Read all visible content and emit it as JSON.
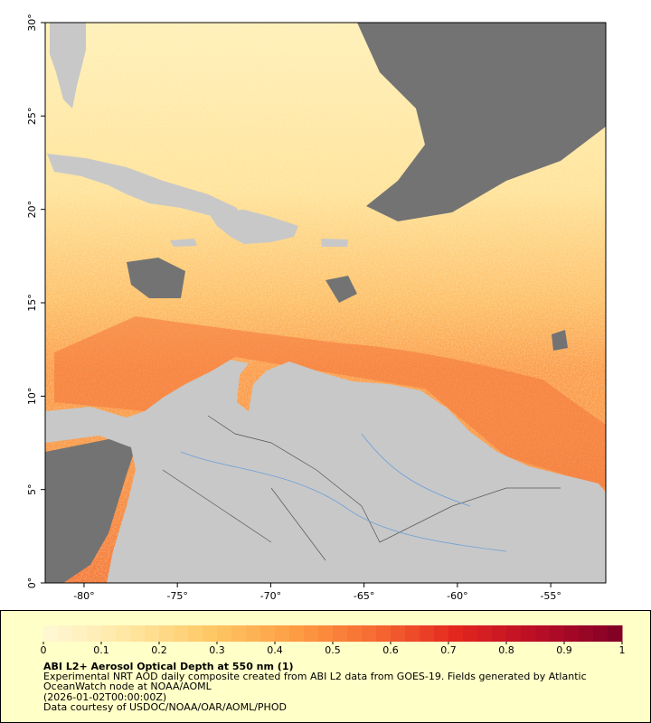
{
  "chart_data": {
    "type": "map",
    "title": "ABI L2+ Aerosol Optical Depth at 550 nm (1)",
    "caption": [
      "Experimental NRT AOD daily composite created from ABI L2 data from GOES-19. Fields generated by Atlantic",
      "OceanWatch node at NOAA/AOML",
      "(2026-01-02T00:00:00Z)",
      "Data courtesy of USDOC/NOAA/OAR/AOML/PHOD"
    ],
    "xlim": [
      -82.08,
      -52.05
    ],
    "ylim": [
      0,
      30
    ],
    "xticks": [
      {
        "value": -80,
        "label": "-80°"
      },
      {
        "value": -75,
        "label": "-75°"
      },
      {
        "value": -70,
        "label": "-70°"
      },
      {
        "value": -65,
        "label": "-65°"
      },
      {
        "value": -60,
        "label": "-60°"
      },
      {
        "value": -55,
        "label": "-55°"
      }
    ],
    "yticks": [
      {
        "value": 0,
        "label": "0°"
      },
      {
        "value": 5,
        "label": "5°"
      },
      {
        "value": 10,
        "label": "10°"
      },
      {
        "value": 15,
        "label": "15°"
      },
      {
        "value": 20,
        "label": "20°"
      },
      {
        "value": 25,
        "label": "25°"
      },
      {
        "value": 30,
        "label": "30°"
      }
    ],
    "colorbar": {
      "lim": [
        0,
        1
      ],
      "ticks": [
        0,
        0.1,
        0.2,
        0.3,
        0.4,
        0.5,
        0.6,
        0.7,
        0.8,
        0.9,
        1
      ],
      "colors": [
        "#fff9d6",
        "#ffe7a3",
        "#fec966",
        "#fd9f44",
        "#f76b33",
        "#e3261e",
        "#b80d26",
        "#7f0026"
      ]
    }
  }
}
